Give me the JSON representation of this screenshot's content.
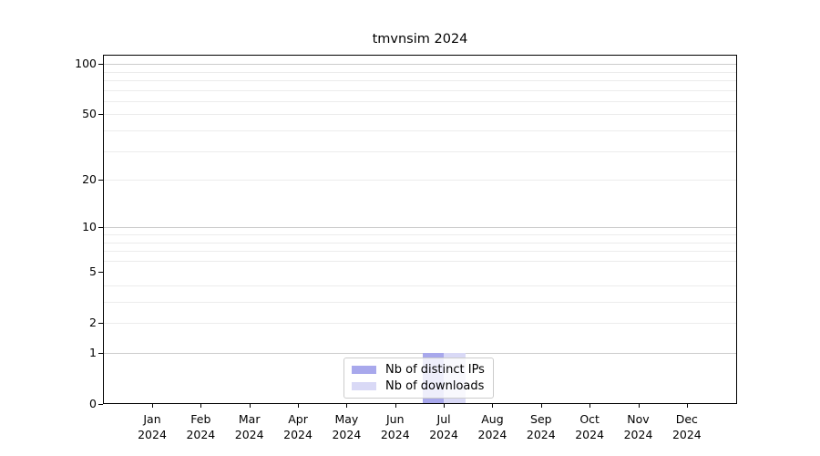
{
  "chart_data": {
    "type": "bar",
    "title": "tmvnsim 2024",
    "x_categories": [
      {
        "month": "Jan",
        "year": "2024"
      },
      {
        "month": "Feb",
        "year": "2024"
      },
      {
        "month": "Mar",
        "year": "2024"
      },
      {
        "month": "Apr",
        "year": "2024"
      },
      {
        "month": "May",
        "year": "2024"
      },
      {
        "month": "Jun",
        "year": "2024"
      },
      {
        "month": "Jul",
        "year": "2024"
      },
      {
        "month": "Aug",
        "year": "2024"
      },
      {
        "month": "Sep",
        "year": "2024"
      },
      {
        "month": "Oct",
        "year": "2024"
      },
      {
        "month": "Nov",
        "year": "2024"
      },
      {
        "month": "Dec",
        "year": "2024"
      }
    ],
    "series": [
      {
        "name": "Nb of distinct IPs",
        "color": "#a8a8ec",
        "values": [
          0,
          0,
          0,
          0,
          0,
          0,
          1,
          0,
          0,
          0,
          0,
          0
        ]
      },
      {
        "name": "Nb of downloads",
        "color": "#d9d9f6",
        "values": [
          0,
          0,
          0,
          0,
          0,
          0,
          1,
          0,
          0,
          0,
          0,
          0
        ]
      }
    ],
    "y_scale": "log1p",
    "ylim": [
      0,
      113.6
    ],
    "y_ticks": [
      0,
      1,
      2,
      5,
      10,
      20,
      50,
      100
    ],
    "y_major_gridlines": [
      1,
      10,
      100
    ],
    "y_minor_gridlines": [
      2,
      3,
      4,
      6,
      7,
      8,
      9,
      20,
      30,
      40,
      50,
      60,
      70,
      80,
      90
    ],
    "xlabel": "",
    "ylabel": "",
    "grid": true,
    "legend_position": "lower center"
  },
  "colors": {
    "bar_distinct_ips": "#a8a8ec",
    "bar_downloads": "#d9d9f6",
    "major_gridline": "#cccccc",
    "minor_gridline": "#ececec",
    "spine": "#000000",
    "background": "#ffffff"
  }
}
